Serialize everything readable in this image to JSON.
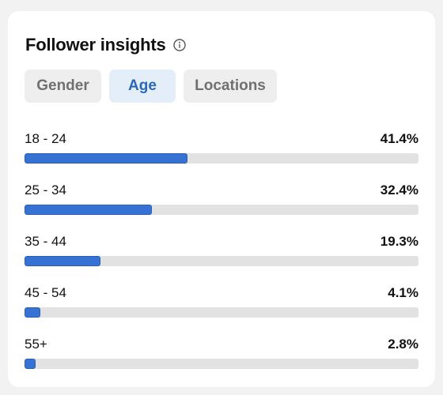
{
  "card": {
    "title": "Follower insights",
    "info_icon": "info-circle-icon"
  },
  "tabs": [
    {
      "label": "Gender",
      "active": false
    },
    {
      "label": "Age",
      "active": true
    },
    {
      "label": "Locations",
      "active": false
    }
  ],
  "age_rows": [
    {
      "label": "18 - 24",
      "value": "41.4%",
      "share": 41.4
    },
    {
      "label": "25 - 34",
      "value": "32.4%",
      "share": 32.4
    },
    {
      "label": "35 - 44",
      "value": "19.3%",
      "share": 19.3
    },
    {
      "label": "45 - 54",
      "value": "4.1%",
      "share": 4.1
    },
    {
      "label": "55+",
      "value": "2.8%",
      "share": 2.8
    }
  ],
  "colors": {
    "bar_fill": "#3672d4",
    "bar_track": "#e2e2e2",
    "active_tab_bg": "#e4eef9",
    "active_tab_text": "#2b68b5"
  }
}
